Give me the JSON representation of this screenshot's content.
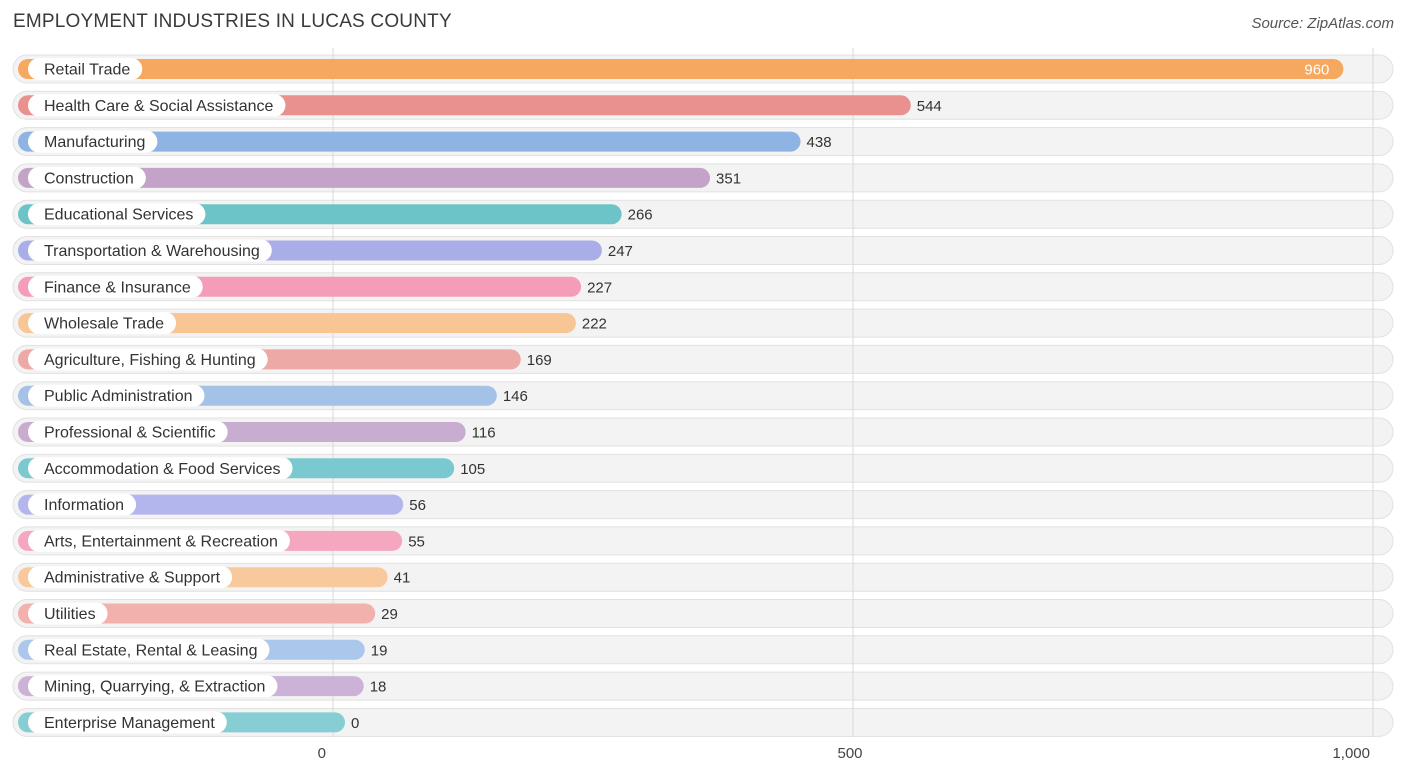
{
  "header": {
    "title": "EMPLOYMENT INDUSTRIES IN LUCAS COUNTY",
    "source": "Source: ZipAtlas.com"
  },
  "chart_data": {
    "type": "bar",
    "orientation": "horizontal",
    "title": "EMPLOYMENT INDUSTRIES IN LUCAS COUNTY",
    "xlabel": "",
    "ylabel": "",
    "xlim": [
      0,
      1000
    ],
    "xticks": [
      0,
      500,
      1000
    ],
    "xtick_labels": [
      "0",
      "500",
      "1,000"
    ],
    "grid": true,
    "categories": [
      "Retail Trade",
      "Health Care & Social Assistance",
      "Manufacturing",
      "Construction",
      "Educational Services",
      "Transportation & Warehousing",
      "Finance & Insurance",
      "Wholesale Trade",
      "Agriculture, Fishing & Hunting",
      "Public Administration",
      "Professional & Scientific",
      "Accommodation & Food Services",
      "Information",
      "Arts, Entertainment & Recreation",
      "Administrative & Support",
      "Utilities",
      "Real Estate, Rental & Leasing",
      "Mining, Quarrying, & Extraction",
      "Enterprise Management"
    ],
    "values": [
      960,
      544,
      438,
      351,
      266,
      247,
      227,
      222,
      169,
      146,
      116,
      105,
      56,
      55,
      41,
      29,
      19,
      18,
      0
    ],
    "value_labels": [
      "960",
      "544",
      "438",
      "351",
      "266",
      "247",
      "227",
      "222",
      "169",
      "146",
      "116",
      "105",
      "56",
      "55",
      "41",
      "29",
      "19",
      "18",
      "0"
    ],
    "colors": [
      "#f6a85e",
      "#e8918f",
      "#8db4e2",
      "#c4a3c9",
      "#6cc4c9",
      "#a9aee9",
      "#f49cb8",
      "#f8c594",
      "#eca9a6",
      "#a3c2e6",
      "#c9add0",
      "#7bc9d0",
      "#b3b6ec",
      "#f5a7c0",
      "#f8c99d",
      "#f2b1ad",
      "#abc8ec",
      "#cbb2d6",
      "#86cdd4"
    ]
  }
}
